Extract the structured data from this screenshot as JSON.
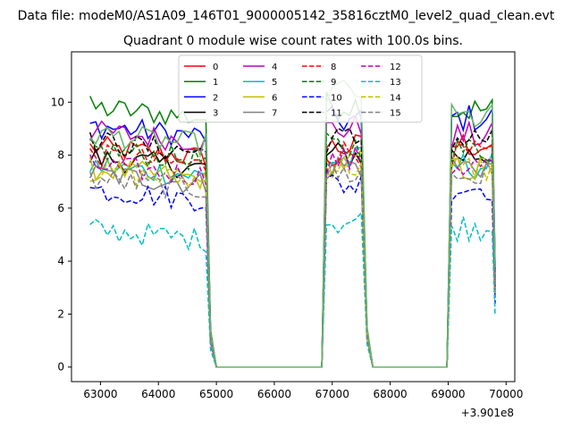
{
  "chart_data": {
    "type": "line",
    "suptitle": "Data file: modeM0/AS1A09_146T01_9000005142_35816cztM0_level2_quad_clean.evt",
    "title": "Quadrant 0 module wise count rates with 100.0s bins.",
    "xlabel": "",
    "ylabel": "",
    "x_offset_label": "+3.901e8",
    "xlim": [
      62500,
      70150
    ],
    "ylim": [
      -0.55,
      11.9
    ],
    "xticks": [
      63000,
      64000,
      65000,
      66000,
      67000,
      68000,
      69000,
      70000
    ],
    "xtick_labels": [
      "63000",
      "64000",
      "65000",
      "66000",
      "67000",
      "68000",
      "69000",
      "70000"
    ],
    "yticks": [
      0,
      2,
      4,
      6,
      8,
      10
    ],
    "ytick_labels": [
      "0",
      "2",
      "4",
      "6",
      "8",
      "10"
    ],
    "grid": false,
    "legend": {
      "placement": "upper-center",
      "columns": 4
    },
    "segments": [
      {
        "x0": 62820,
        "x1": 64820
      },
      {
        "x0": 66900,
        "x1": 67520
      },
      {
        "x0": 69060,
        "x1": 69760
      }
    ],
    "series": [
      {
        "name": "0",
        "color": "#ff0000",
        "dash": false,
        "levels": [
          8.3,
          8.3,
          8.4
        ]
      },
      {
        "name": "1",
        "color": "#008000",
        "dash": false,
        "levels": [
          9.8,
          9.9,
          9.7
        ]
      },
      {
        "name": "2",
        "color": "#0000ff",
        "dash": false,
        "levels": [
          9.1,
          9.3,
          9.4
        ]
      },
      {
        "name": "3",
        "color": "#000000",
        "dash": false,
        "levels": [
          7.9,
          8.0,
          8.0
        ]
      },
      {
        "name": "4",
        "color": "#bf00bf",
        "dash": false,
        "levels": [
          8.9,
          9.0,
          8.7
        ]
      },
      {
        "name": "5",
        "color": "#00bfbf",
        "dash": false,
        "levels": [
          7.6,
          7.8,
          7.6
        ]
      },
      {
        "name": "6",
        "color": "#bfbf00",
        "dash": false,
        "levels": [
          7.5,
          7.7,
          7.5
        ]
      },
      {
        "name": "7",
        "color": "#808080",
        "dash": false,
        "levels": [
          7.3,
          7.6,
          7.6
        ]
      },
      {
        "name": "8",
        "color": "#ff0000",
        "dash": true,
        "levels": [
          8.0,
          8.1,
          8.0
        ]
      },
      {
        "name": "9",
        "color": "#008000",
        "dash": true,
        "levels": [
          8.2,
          8.3,
          8.2
        ]
      },
      {
        "name": "10",
        "color": "#0000ff",
        "dash": true,
        "levels": [
          6.7,
          6.9,
          6.8
        ]
      },
      {
        "name": "11",
        "color": "#000000",
        "dash": true,
        "levels": [
          8.5,
          8.6,
          8.6
        ]
      },
      {
        "name": "12",
        "color": "#bf00bf",
        "dash": true,
        "levels": [
          7.6,
          7.8,
          7.6
        ]
      },
      {
        "name": "13",
        "color": "#00bfbf",
        "dash": true,
        "levels": [
          5.2,
          5.5,
          5.3
        ]
      },
      {
        "name": "14",
        "color": "#bfbf00",
        "dash": true,
        "levels": [
          7.4,
          7.6,
          7.5
        ]
      },
      {
        "name": "15",
        "color": "#808080",
        "dash": true,
        "levels": [
          7.1,
          7.3,
          7.2
        ]
      },
      {
        "name": "",
        "color": "#66b366",
        "dash": false,
        "levels": [
          8.8,
          10.4,
          9.4
        ]
      }
    ]
  }
}
